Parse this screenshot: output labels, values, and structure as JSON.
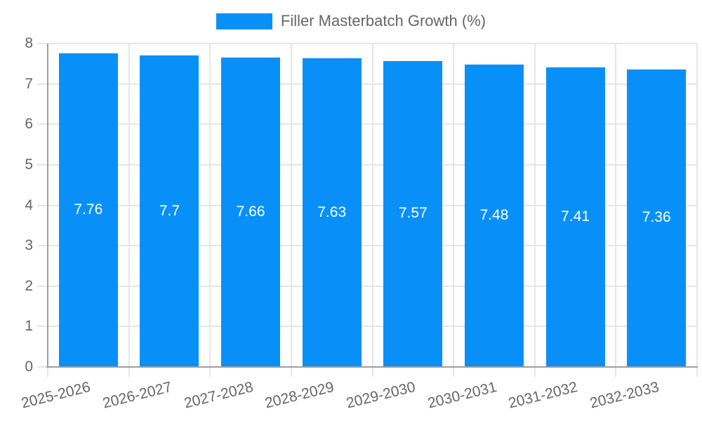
{
  "chart_data": {
    "type": "bar",
    "title": "",
    "legend": {
      "label": "Filler Masterbatch Growth (%)",
      "position": "top"
    },
    "categories": [
      "2025-2026",
      "2026-2027",
      "2027-2028",
      "2028-2029",
      "2029-2030",
      "2030-2031",
      "2031-2032",
      "2032-2033"
    ],
    "series": [
      {
        "name": "Filler Masterbatch Growth (%)",
        "values": [
          7.76,
          7.7,
          7.66,
          7.63,
          7.57,
          7.48,
          7.41,
          7.36
        ],
        "value_labels": [
          "7.76",
          "7.7",
          "7.66",
          "7.63",
          "7.57",
          "7.48",
          "7.41",
          "7.36"
        ]
      }
    ],
    "xlabel": "",
    "ylabel": "",
    "ylim": [
      0,
      8
    ],
    "yticks": [
      0,
      1,
      2,
      3,
      4,
      5,
      6,
      7,
      8
    ],
    "grid": true,
    "bar_value_labels_inside": true,
    "colors": {
      "bar": "#0890F8",
      "grid": "#e6e6e6",
      "axis": "#9e9e9e",
      "tick_label": "#666666",
      "value_label": "#ffffff",
      "legend_text": "#666666",
      "background": "#ffffff"
    }
  }
}
